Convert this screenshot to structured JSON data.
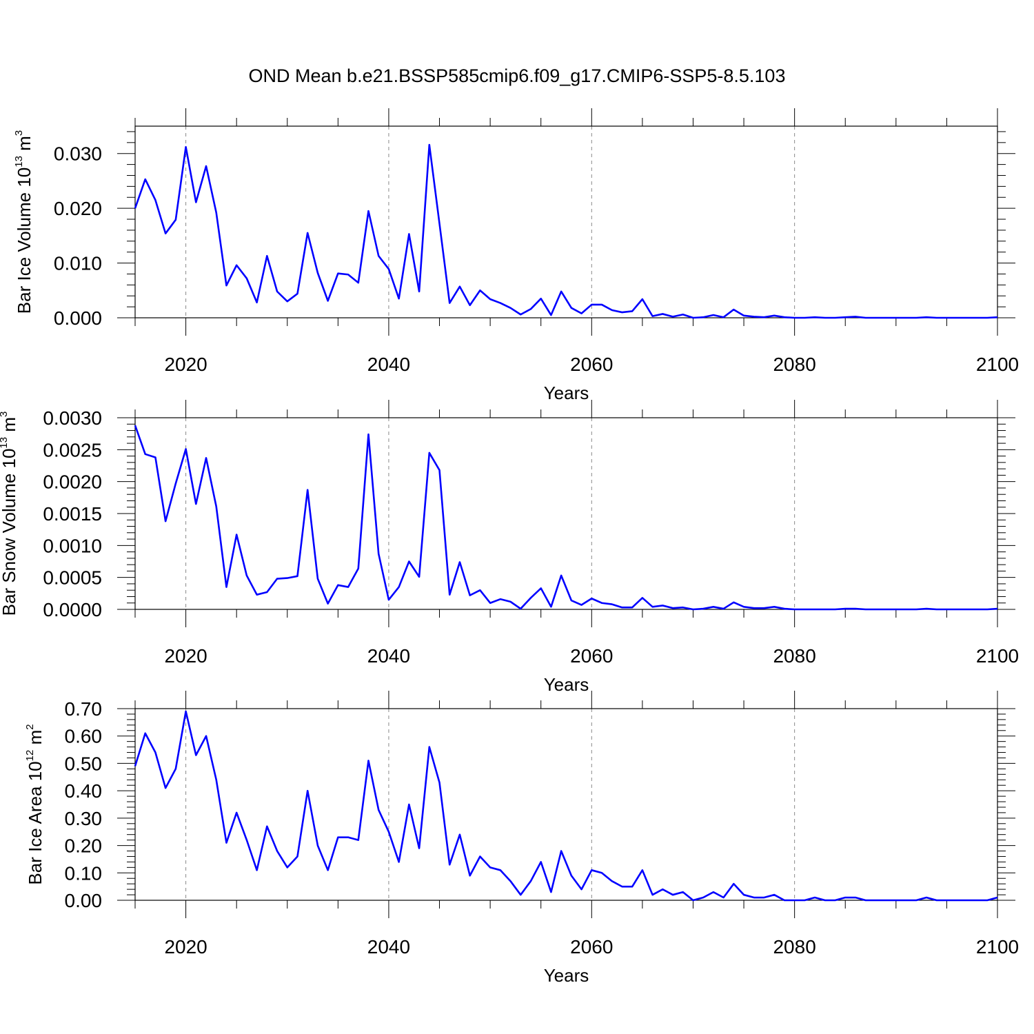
{
  "title": "OND Mean b.e21.BSSP585cmip6.f09_g17.CMIP6-SSP5-8.5.103",
  "line_color": "#0000ff",
  "chart_data": [
    {
      "type": "line",
      "ylabel": "Bar Ice Volume 10",
      "ylabel_exponent": "13",
      "ylabel_unit": " m",
      "ylabel_unit_exponent": "3",
      "xlabel": "Years",
      "xlim": [
        2015,
        2100
      ],
      "ylim": [
        0,
        0.035
      ],
      "xticks": [
        2020,
        2040,
        2060,
        2080,
        2100
      ],
      "xtick_labels": [
        "2020",
        "2040",
        "2060",
        "2080",
        "2100"
      ],
      "yticks": [
        0,
        0.01,
        0.02,
        0.03
      ],
      "ytick_labels": [
        "0.000",
        "0.010",
        "0.020",
        "0.030"
      ],
      "grid": "vertical dashed at major x ticks",
      "x": [
        2015,
        2016,
        2017,
        2018,
        2019,
        2020,
        2021,
        2022,
        2023,
        2024,
        2025,
        2026,
        2027,
        2028,
        2029,
        2030,
        2031,
        2032,
        2033,
        2034,
        2035,
        2036,
        2037,
        2038,
        2039,
        2040,
        2041,
        2042,
        2043,
        2044,
        2045,
        2046,
        2047,
        2048,
        2049,
        2050,
        2051,
        2052,
        2053,
        2054,
        2055,
        2056,
        2057,
        2058,
        2059,
        2060,
        2061,
        2062,
        2063,
        2064,
        2065,
        2066,
        2067,
        2068,
        2069,
        2070,
        2071,
        2072,
        2073,
        2074,
        2075,
        2076,
        2077,
        2078,
        2079,
        2080,
        2081,
        2082,
        2083,
        2084,
        2085,
        2086,
        2087,
        2088,
        2089,
        2090,
        2091,
        2092,
        2093,
        2094,
        2095,
        2096,
        2097,
        2098,
        2099,
        2100
      ],
      "values": [
        0.02,
        0.0253,
        0.0215,
        0.0154,
        0.0179,
        0.0312,
        0.0211,
        0.0277,
        0.0192,
        0.0059,
        0.0096,
        0.0072,
        0.0028,
        0.0113,
        0.0048,
        0.003,
        0.0044,
        0.0155,
        0.0082,
        0.0031,
        0.0081,
        0.0079,
        0.0064,
        0.0195,
        0.0113,
        0.0089,
        0.0035,
        0.0153,
        0.0048,
        0.0316,
        0.0172,
        0.0027,
        0.0057,
        0.0023,
        0.005,
        0.0034,
        0.0027,
        0.0018,
        0.0006,
        0.0016,
        0.0035,
        0.0005,
        0.0048,
        0.0018,
        0.0008,
        0.0024,
        0.0024,
        0.0014,
        0.001,
        0.0012,
        0.0034,
        0.0003,
        0.0007,
        0.0002,
        0.0006,
        0.0,
        0.0001,
        0.0005,
        0.0001,
        0.0015,
        0.0004,
        0.0002,
        0.0001,
        0.0004,
        0.0001,
        0.0,
        0.0,
        0.0001,
        0.0,
        0.0,
        0.0001,
        0.0002,
        0.0,
        0.0,
        0.0,
        0.0,
        0.0,
        0.0,
        0.0001,
        0.0,
        0.0,
        0.0,
        0.0,
        0.0,
        0.0,
        0.0001
      ]
    },
    {
      "type": "line",
      "ylabel": "Bar Snow Volume 10",
      "ylabel_exponent": "13",
      "ylabel_unit": " m",
      "ylabel_unit_exponent": "3",
      "xlabel": "Years",
      "xlim": [
        2015,
        2100
      ],
      "ylim": [
        0,
        0.003
      ],
      "xticks": [
        2020,
        2040,
        2060,
        2080,
        2100
      ],
      "xtick_labels": [
        "2020",
        "2040",
        "2060",
        "2080",
        "2100"
      ],
      "yticks": [
        0,
        0.0005,
        0.001,
        0.0015,
        0.002,
        0.0025,
        0.003
      ],
      "ytick_labels": [
        "0.0000",
        "0.0005",
        "0.0010",
        "0.0015",
        "0.0020",
        "0.0025",
        "0.0030"
      ],
      "grid": "vertical dashed at major x ticks",
      "x": [
        2015,
        2016,
        2017,
        2018,
        2019,
        2020,
        2021,
        2022,
        2023,
        2024,
        2025,
        2026,
        2027,
        2028,
        2029,
        2030,
        2031,
        2032,
        2033,
        2034,
        2035,
        2036,
        2037,
        2038,
        2039,
        2040,
        2041,
        2042,
        2043,
        2044,
        2045,
        2046,
        2047,
        2048,
        2049,
        2050,
        2051,
        2052,
        2053,
        2054,
        2055,
        2056,
        2057,
        2058,
        2059,
        2060,
        2061,
        2062,
        2063,
        2064,
        2065,
        2066,
        2067,
        2068,
        2069,
        2070,
        2071,
        2072,
        2073,
        2074,
        2075,
        2076,
        2077,
        2078,
        2079,
        2080,
        2081,
        2082,
        2083,
        2084,
        2085,
        2086,
        2087,
        2088,
        2089,
        2090,
        2091,
        2092,
        2093,
        2094,
        2095,
        2096,
        2097,
        2098,
        2099,
        2100
      ],
      "values": [
        0.00288,
        0.00243,
        0.00238,
        0.00138,
        0.00197,
        0.00251,
        0.00165,
        0.00237,
        0.00161,
        0.00035,
        0.00117,
        0.00053,
        0.00023,
        0.00027,
        0.00048,
        0.00049,
        0.00052,
        0.00187,
        0.00048,
        9e-05,
        0.00038,
        0.00035,
        0.00064,
        0.00274,
        0.00087,
        0.00015,
        0.00035,
        0.00075,
        0.00051,
        0.00245,
        0.00218,
        0.00023,
        0.00074,
        0.00022,
        0.0003,
        0.0001,
        0.00016,
        0.00012,
        1e-05,
        0.00018,
        0.00033,
        4e-05,
        0.00053,
        0.00014,
        7e-05,
        0.00017,
        0.0001,
        8e-05,
        3e-05,
        3e-05,
        0.00018,
        4e-05,
        6e-05,
        2e-05,
        3e-05,
        0.0,
        1e-05,
        4e-05,
        1e-05,
        0.00011,
        4e-05,
        2e-05,
        2e-05,
        4e-05,
        1e-05,
        0.0,
        0.0,
        0.0,
        0.0,
        0.0,
        1e-05,
        1e-05,
        0.0,
        0.0,
        0.0,
        0.0,
        0.0,
        0.0,
        1e-05,
        0.0,
        0.0,
        0.0,
        0.0,
        0.0,
        0.0,
        1e-05
      ]
    },
    {
      "type": "line",
      "ylabel": "Bar Ice Area 10",
      "ylabel_exponent": "12",
      "ylabel_unit": " m",
      "ylabel_unit_exponent": "2",
      "xlabel": "Years",
      "xlim": [
        2015,
        2100
      ],
      "ylim": [
        0,
        0.7
      ],
      "xticks": [
        2020,
        2040,
        2060,
        2080,
        2100
      ],
      "xtick_labels": [
        "2020",
        "2040",
        "2060",
        "2080",
        "2100"
      ],
      "yticks": [
        0,
        0.1,
        0.2,
        0.3,
        0.4,
        0.5,
        0.6,
        0.7
      ],
      "ytick_labels": [
        "0.00",
        "0.10",
        "0.20",
        "0.30",
        "0.40",
        "0.50",
        "0.60",
        "0.70"
      ],
      "grid": "vertical dashed at major x ticks",
      "x": [
        2015,
        2016,
        2017,
        2018,
        2019,
        2020,
        2021,
        2022,
        2023,
        2024,
        2025,
        2026,
        2027,
        2028,
        2029,
        2030,
        2031,
        2032,
        2033,
        2034,
        2035,
        2036,
        2037,
        2038,
        2039,
        2040,
        2041,
        2042,
        2043,
        2044,
        2045,
        2046,
        2047,
        2048,
        2049,
        2050,
        2051,
        2052,
        2053,
        2054,
        2055,
        2056,
        2057,
        2058,
        2059,
        2060,
        2061,
        2062,
        2063,
        2064,
        2065,
        2066,
        2067,
        2068,
        2069,
        2070,
        2071,
        2072,
        2073,
        2074,
        2075,
        2076,
        2077,
        2078,
        2079,
        2080,
        2081,
        2082,
        2083,
        2084,
        2085,
        2086,
        2087,
        2088,
        2089,
        2090,
        2091,
        2092,
        2093,
        2094,
        2095,
        2096,
        2097,
        2098,
        2099,
        2100
      ],
      "values": [
        0.49,
        0.61,
        0.54,
        0.41,
        0.48,
        0.69,
        0.53,
        0.6,
        0.44,
        0.21,
        0.32,
        0.22,
        0.11,
        0.27,
        0.18,
        0.12,
        0.16,
        0.4,
        0.2,
        0.11,
        0.23,
        0.23,
        0.22,
        0.51,
        0.33,
        0.25,
        0.14,
        0.35,
        0.19,
        0.56,
        0.43,
        0.13,
        0.24,
        0.09,
        0.16,
        0.12,
        0.11,
        0.07,
        0.02,
        0.07,
        0.14,
        0.03,
        0.18,
        0.09,
        0.04,
        0.11,
        0.1,
        0.07,
        0.05,
        0.05,
        0.11,
        0.02,
        0.04,
        0.02,
        0.03,
        0.0,
        0.01,
        0.03,
        0.01,
        0.06,
        0.02,
        0.01,
        0.01,
        0.02,
        0.0,
        0.0,
        0.0,
        0.01,
        0.0,
        0.0,
        0.01,
        0.01,
        0.0,
        0.0,
        0.0,
        0.0,
        0.0,
        0.0,
        0.01,
        0.0,
        0.0,
        0.0,
        0.0,
        0.0,
        0.0,
        0.01
      ]
    }
  ]
}
